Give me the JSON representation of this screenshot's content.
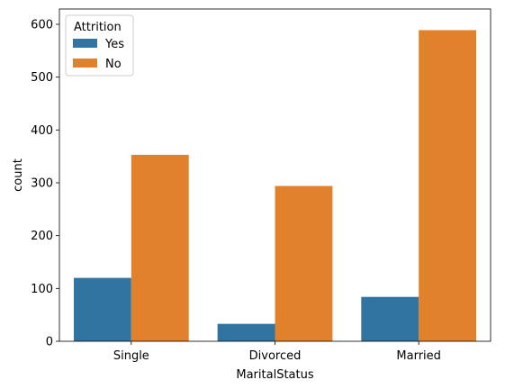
{
  "chart_data": {
    "type": "bar",
    "categories": [
      "Single",
      "Divorced",
      "Married"
    ],
    "series": [
      {
        "name": "Yes",
        "values": [
          120,
          33,
          84
        ],
        "color": "#3274a1"
      },
      {
        "name": "No",
        "values": [
          353,
          294,
          589
        ],
        "color": "#e1812c"
      }
    ],
    "xlabel": "MaritalStatus",
    "ylabel": "count",
    "ylim": [
      0,
      629
    ],
    "yticks": [
      0,
      100,
      200,
      300,
      400,
      500,
      600
    ],
    "legend": {
      "title": "Attrition",
      "placement": "top-left"
    },
    "grid": false
  }
}
